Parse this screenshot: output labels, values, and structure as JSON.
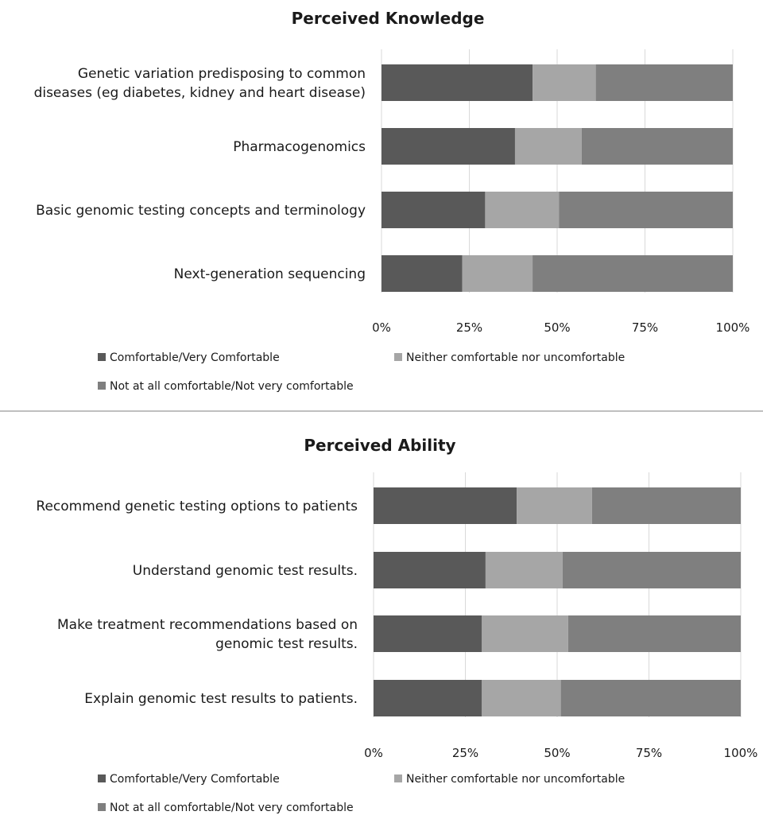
{
  "colors": {
    "comfortable": "#595959",
    "neither": "#a6a6a6",
    "not_comfortable": "#7f7f7f",
    "grid": "#d9d9d9",
    "divider": "#bfbfbf"
  },
  "chart_data": [
    {
      "type": "bar",
      "orientation": "horizontal-stacked-100",
      "title": "Perceived Knowledge",
      "categories": [
        [
          "Genetic variation predisposing to common",
          "diseases (eg diabetes, kidney and heart disease)"
        ],
        [
          "Pharmacogenomics"
        ],
        [
          "Basic genomic testing concepts and terminology"
        ],
        [
          "Next-generation sequencing"
        ]
      ],
      "series": [
        {
          "name": "Comfortable/Very Comfortable",
          "values": [
            43,
            38,
            29.5,
            23
          ]
        },
        {
          "name": "Neither comfortable nor uncomfortable",
          "values": [
            18,
            19,
            21,
            20
          ]
        },
        {
          "name": "Not at all comfortable/Not very comfortable",
          "values": [
            39,
            43,
            49.5,
            57
          ]
        }
      ],
      "xlim": [
        0,
        100
      ],
      "xticks": [
        "0%",
        "25%",
        "50%",
        "75%",
        "100%"
      ],
      "grid": true,
      "legend_position": "bottom"
    },
    {
      "type": "bar",
      "orientation": "horizontal-stacked-100",
      "title": "Perceived Ability",
      "categories": [
        [
          "Recommend genetic testing options to patients"
        ],
        [
          "Understand genomic test results."
        ],
        [
          "Make treatment recommendations based on",
          "genomic test results."
        ],
        [
          "Explain genomic test results to patients."
        ]
      ],
      "series": [
        {
          "name": "Comfortable/Very Comfortable",
          "values": [
            39,
            30.5,
            29.5,
            29.5
          ]
        },
        {
          "name": "Neither comfortable nor uncomfortable",
          "values": [
            20.5,
            21,
            23.5,
            21.5
          ]
        },
        {
          "name": "Not at all comfortable/Not very comfortable",
          "values": [
            40.5,
            48.5,
            47,
            49
          ]
        }
      ],
      "xlim": [
        0,
        100
      ],
      "xticks": [
        "0%",
        "25%",
        "50%",
        "75%",
        "100%"
      ],
      "grid": true,
      "legend_position": "bottom"
    }
  ]
}
